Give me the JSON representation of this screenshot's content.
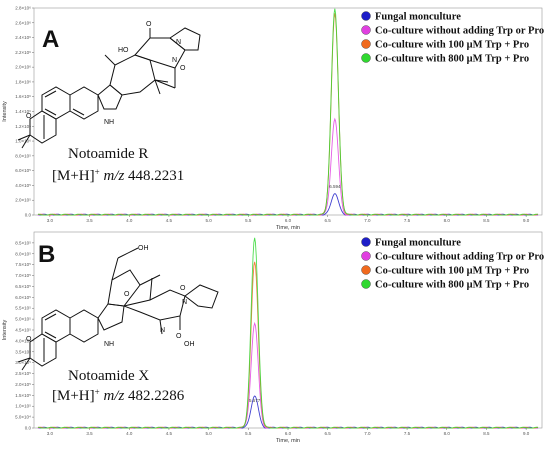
{
  "chart_data": [
    {
      "type": "line",
      "panel_label": "A",
      "compound_name": "Notoamide R",
      "ion_prefix": "[M+H]",
      "ion_sup": "+",
      "ion_mz_label": "m/z",
      "ion_value": "448.2231",
      "ylabel": "Intensity",
      "xlabel": "Time, min",
      "xlim": [
        2.8,
        9.2
      ],
      "ylim": [
        0,
        2.8
      ],
      "x_ticks": [
        "3.0",
        "3.5",
        "4.0",
        "4.5",
        "5.0",
        "5.5",
        "6.0",
        "6.5",
        "7.0",
        "7.5",
        "8.0",
        "8.5",
        "9.0"
      ],
      "y_ticks": [
        "0.0",
        "2.0×10⁵",
        "4.0×10⁵",
        "6.0×10⁵",
        "8.0×10⁵",
        "1.0×10⁶",
        "1.2×10⁶",
        "1.4×10⁶",
        "1.6×10⁶",
        "1.8×10⁶",
        "2.0×10⁶",
        "2.2×10⁶",
        "2.4×10⁶",
        "2.6×10⁶",
        "2.8×10⁶"
      ],
      "peak_label": "6.594",
      "peak_x": 6.59,
      "series": [
        {
          "name": "Fungal monculture",
          "color": "#1e1ec8",
          "peak": 0.3
        },
        {
          "name": "Co-culture without adding Trp or Pro",
          "color": "#e040e0",
          "peak": 1.3
        },
        {
          "name": "Co-culture with 100 μM Trp + Pro",
          "color": "#f06a1e",
          "peak": 2.72
        },
        {
          "name": "Co-culture with 800 μM Trp + Pro",
          "color": "#30d830",
          "peak": 2.78
        }
      ]
    },
    {
      "type": "line",
      "panel_label": "B",
      "compound_name": "Notoamide X",
      "ion_prefix": "[M+H]",
      "ion_sup": "+",
      "ion_mz_label": "m/z",
      "ion_value": "482.2286",
      "ylabel": "Intensity",
      "xlabel": "Time, min",
      "xlim": [
        2.8,
        9.2
      ],
      "ylim": [
        0,
        9.0
      ],
      "x_ticks": [
        "3.0",
        "3.5",
        "4.0",
        "4.5",
        "5.0",
        "5.5",
        "6.0",
        "6.5",
        "7.0",
        "7.5",
        "8.0",
        "8.5",
        "9.0"
      ],
      "y_ticks": [
        "0.0",
        "5.0×10⁴",
        "1.0×10⁵",
        "1.5×10⁵",
        "2.0×10⁵",
        "2.5×10⁵",
        "3.0×10⁵",
        "3.5×10⁵",
        "4.0×10⁵",
        "4.5×10⁵",
        "5.0×10⁵",
        "5.5×10⁵",
        "6.0×10⁵",
        "6.5×10⁵",
        "7.0×10⁵",
        "7.5×10⁵",
        "8.0×10⁵",
        "8.5×10⁵"
      ],
      "peak_label": "5.577",
      "peak_x": 5.58,
      "series": [
        {
          "name": "Fungal monculture",
          "color": "#1e1ec8",
          "peak": 1.5
        },
        {
          "name": "Co-culture without adding Trp or Pro",
          "color": "#e040e0",
          "peak": 4.8
        },
        {
          "name": "Co-culture with 100 μM Trp + Pro",
          "color": "#f06a1e",
          "peak": 7.6
        },
        {
          "name": "Co-culture with 800 μM Trp + Pro",
          "color": "#30d830",
          "peak": 8.7
        }
      ]
    }
  ]
}
